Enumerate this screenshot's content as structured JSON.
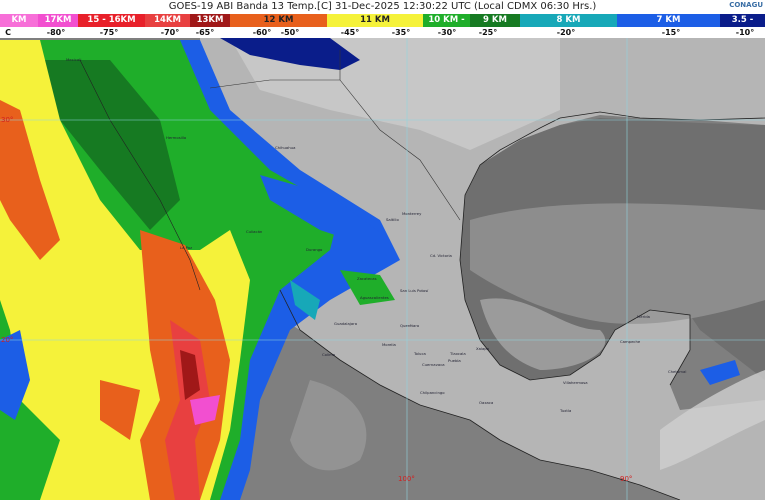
{
  "header": {
    "title": "GOES-19 ABI Banda 13 Temp.[C] 31-Dec-2025 12:30:22 UTC (Local CDMX  06:30 Hrs.)",
    "logo_text": "CONAGU"
  },
  "legend": {
    "altitudes": [
      {
        "label": "KM",
        "color": "#f76fd8"
      },
      {
        "label": "17KM",
        "color": "#f24fd0"
      },
      {
        "label": "15 - 16KM",
        "color": "#e8202a"
      },
      {
        "label": "14KM",
        "color": "#e84040"
      },
      {
        "label": "13KM",
        "color": "#a01818"
      },
      {
        "label": "12 KM",
        "color": "#e8601c"
      },
      {
        "label": "11 KM",
        "color": "#f5f23a"
      },
      {
        "label": "10 KM -",
        "color": "#1fae2a"
      },
      {
        "label": "9 KM",
        "color": "#167a22"
      },
      {
        "label": "8 KM",
        "color": "#17a8b8"
      },
      {
        "label": "7 KM",
        "color": "#1c5ee6"
      },
      {
        "label": "3.5 -",
        "color": "#0a1d8a"
      }
    ],
    "temperatures": [
      "C",
      "-80°",
      "-75°",
      "-70°",
      "-65°",
      "-60°",
      "-50°",
      "-45°",
      "-35°",
      "-30°",
      "-25°",
      "-20°",
      "-15°",
      "-10°"
    ]
  },
  "grid_labels": {
    "lat_30": "30°",
    "lat_20": "20°",
    "lon_100": "100°",
    "lon_90": "90°"
  },
  "cities": [
    "Mexicali",
    "Hermosillo",
    "Chihuahua",
    "Monterrey",
    "Saltillo",
    "Cd. Victoria",
    "Culiacán",
    "La Paz",
    "Durango",
    "Zacatecas",
    "San Luis Potosí",
    "Aguascalientes",
    "Guadalajara",
    "Querétaro",
    "Morelia",
    "Colima",
    "Toluca",
    "Tlaxcala",
    "Puebla",
    "Xalapa",
    "Cuernavaca",
    "Chilpancingo",
    "Oaxaca",
    "Tuxtla",
    "Villahermosa",
    "Campeche",
    "Mérida",
    "Chetumal"
  ]
}
